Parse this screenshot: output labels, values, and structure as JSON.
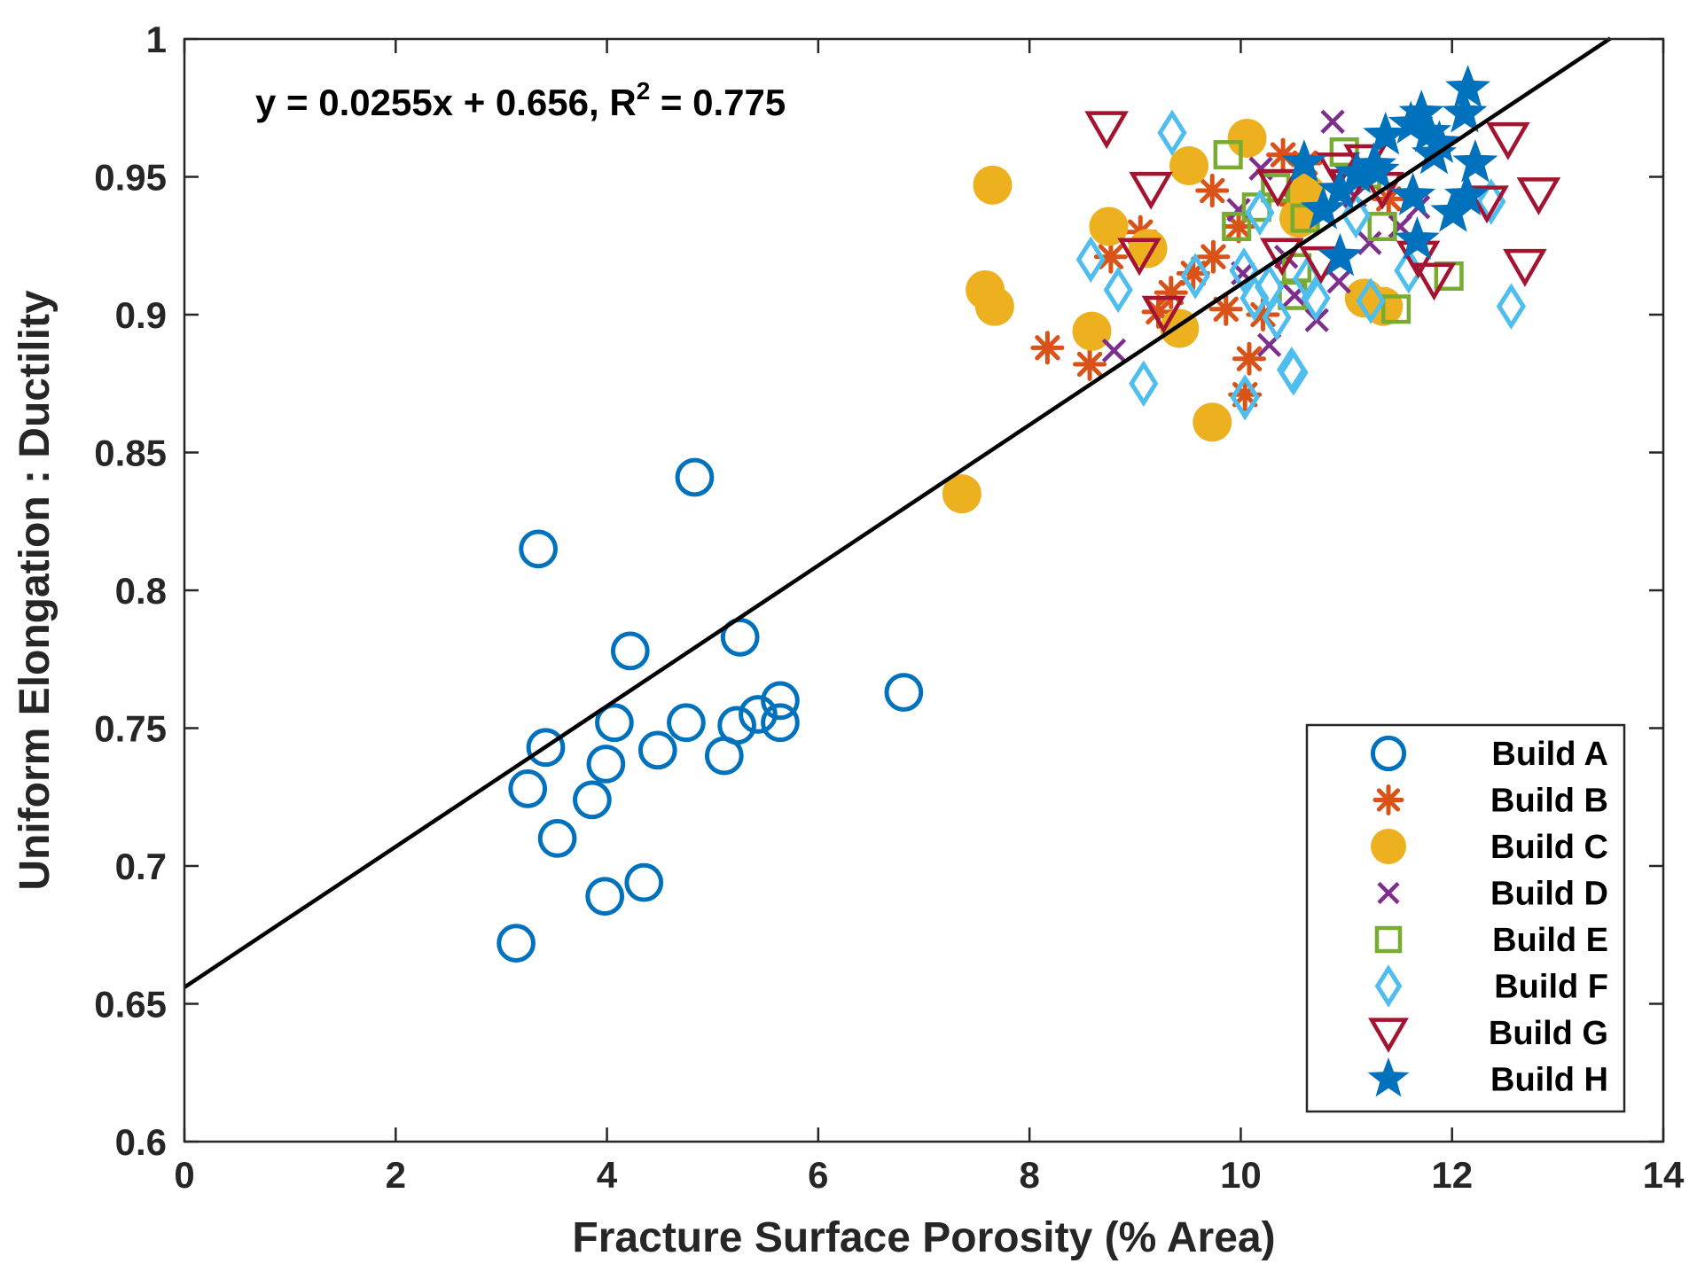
{
  "chart_data": {
    "type": "scatter",
    "title": "",
    "xlabel": "Fracture Surface Porosity (% Area)",
    "ylabel": "Uniform Elongation : Ductility",
    "xlim": [
      0,
      14
    ],
    "ylim": [
      0.6,
      1.0
    ],
    "xticks": [
      0,
      2,
      4,
      6,
      8,
      10,
      12,
      14
    ],
    "xtick_labels": [
      "0",
      "2",
      "4",
      "6",
      "8",
      "10",
      "12",
      "14"
    ],
    "yticks": [
      0.6,
      0.65,
      0.7,
      0.75,
      0.8,
      0.85,
      0.9,
      0.95,
      1.0
    ],
    "ytick_labels": [
      "0.6",
      "0.65",
      "0.7",
      "0.75",
      "0.8",
      "0.85",
      "0.9",
      "0.95",
      "1"
    ],
    "grid": false,
    "legend_position": "bottom-right",
    "fit": {
      "slope": 0.0255,
      "intercept": 0.656,
      "x_range": [
        0,
        13.5
      ],
      "label_prefix": "y = 0.0255x + 0.656, R",
      "label_sup": "2",
      "label_suffix": " = 0.775"
    },
    "series": [
      {
        "name": "Build A",
        "marker": "circle-open",
        "color": "#0072BD",
        "points": [
          [
            4.83,
            0.841
          ],
          [
            3.35,
            0.815
          ],
          [
            4.22,
            0.778
          ],
          [
            5.26,
            0.783
          ],
          [
            6.81,
            0.763
          ],
          [
            5.64,
            0.76
          ],
          [
            5.43,
            0.755
          ],
          [
            5.23,
            0.751
          ],
          [
            5.64,
            0.752
          ],
          [
            4.75,
            0.752
          ],
          [
            4.07,
            0.752
          ],
          [
            3.42,
            0.743
          ],
          [
            4.48,
            0.742
          ],
          [
            3.99,
            0.737
          ],
          [
            5.11,
            0.74
          ],
          [
            3.25,
            0.728
          ],
          [
            3.86,
            0.724
          ],
          [
            3.53,
            0.71
          ],
          [
            4.35,
            0.694
          ],
          [
            3.98,
            0.689
          ],
          [
            3.14,
            0.672
          ]
        ]
      },
      {
        "name": "Build B",
        "marker": "asterisk",
        "color": "#D95319",
        "points": [
          [
            8.17,
            0.888
          ],
          [
            8.57,
            0.882
          ],
          [
            8.77,
            0.921
          ],
          [
            9.05,
            0.93
          ],
          [
            9.34,
            0.908
          ],
          [
            9.55,
            0.915
          ],
          [
            9.73,
            0.945
          ],
          [
            9.74,
            0.921
          ],
          [
            9.86,
            0.902
          ],
          [
            9.98,
            0.932
          ],
          [
            10.08,
            0.884
          ],
          [
            10.21,
            0.9
          ],
          [
            10.04,
            0.871
          ],
          [
            10.4,
            0.958
          ],
          [
            10.52,
            0.94
          ],
          [
            10.61,
            0.955
          ],
          [
            11.4,
            0.942
          ],
          [
            9.22,
            0.901
          ]
        ]
      },
      {
        "name": "Build C",
        "marker": "circle-filled",
        "color": "#EDB120",
        "points": [
          [
            7.65,
            0.947
          ],
          [
            7.58,
            0.909
          ],
          [
            7.67,
            0.903
          ],
          [
            8.75,
            0.932
          ],
          [
            9.12,
            0.924
          ],
          [
            8.59,
            0.894
          ],
          [
            9.42,
            0.895
          ],
          [
            9.51,
            0.954
          ],
          [
            10.06,
            0.964
          ],
          [
            9.73,
            0.861
          ],
          [
            7.36,
            0.835
          ],
          [
            10.62,
            0.944
          ],
          [
            11.17,
            0.906
          ],
          [
            11.35,
            0.903
          ],
          [
            10.55,
            0.935
          ]
        ]
      },
      {
        "name": "Build D",
        "marker": "x",
        "color": "#7E2F8E",
        "points": [
          [
            8.8,
            0.887
          ],
          [
            9.98,
            0.938
          ],
          [
            10.19,
            0.953
          ],
          [
            10.27,
            0.889
          ],
          [
            10.43,
            0.921
          ],
          [
            10.72,
            0.898
          ],
          [
            10.93,
            0.912
          ],
          [
            10.87,
            0.97
          ],
          [
            11.08,
            0.943
          ],
          [
            11.22,
            0.926
          ],
          [
            11.51,
            0.932
          ],
          [
            11.68,
            0.939
          ],
          [
            10.02,
            0.915
          ],
          [
            10.51,
            0.907
          ]
        ]
      },
      {
        "name": "Build E",
        "marker": "square-open",
        "color": "#77AC30",
        "points": [
          [
            9.88,
            0.958
          ],
          [
            9.96,
            0.932
          ],
          [
            10.15,
            0.939
          ],
          [
            10.33,
            0.946
          ],
          [
            10.53,
            0.917
          ],
          [
            10.49,
            0.907
          ],
          [
            10.98,
            0.959
          ],
          [
            11.19,
            0.951
          ],
          [
            11.34,
            0.932
          ],
          [
            11.47,
            0.902
          ],
          [
            11.97,
            0.914
          ],
          [
            10.61,
            0.935
          ]
        ]
      },
      {
        "name": "Build F",
        "marker": "diamond-open",
        "color": "#4DBEEE",
        "points": [
          [
            9.35,
            0.966
          ],
          [
            8.58,
            0.92
          ],
          [
            8.84,
            0.909
          ],
          [
            9.08,
            0.875
          ],
          [
            9.57,
            0.914
          ],
          [
            10.04,
            0.87
          ],
          [
            10.03,
            0.916
          ],
          [
            10.13,
            0.906
          ],
          [
            10.27,
            0.91
          ],
          [
            10.34,
            0.899
          ],
          [
            10.48,
            0.88
          ],
          [
            10.5,
            0.879
          ],
          [
            10.63,
            0.913
          ],
          [
            10.71,
            0.906
          ],
          [
            11.23,
            0.905
          ],
          [
            11.59,
            0.916
          ],
          [
            12.56,
            0.903
          ],
          [
            12.37,
            0.941
          ],
          [
            10.18,
            0.937
          ],
          [
            11.09,
            0.936
          ]
        ]
      },
      {
        "name": "Build G",
        "marker": "triangle-down-open",
        "color": "#A2142F",
        "points": [
          [
            8.73,
            0.968
          ],
          [
            9.15,
            0.946
          ],
          [
            9.04,
            0.922
          ],
          [
            9.27,
            0.901
          ],
          [
            10.35,
            0.947
          ],
          [
            10.39,
            0.922
          ],
          [
            10.76,
            0.919
          ],
          [
            10.92,
            0.953
          ],
          [
            11.18,
            0.956
          ],
          [
            11.34,
            0.946
          ],
          [
            11.68,
            0.921
          ],
          [
            11.83,
            0.913
          ],
          [
            12.53,
            0.964
          ],
          [
            12.82,
            0.944
          ],
          [
            12.69,
            0.918
          ],
          [
            12.33,
            0.941
          ],
          [
            11.04,
            0.947
          ]
        ]
      },
      {
        "name": "Build H",
        "marker": "star-filled",
        "color": "#0072BD",
        "points": [
          [
            10.6,
            0.955
          ],
          [
            10.78,
            0.938
          ],
          [
            10.94,
            0.945
          ],
          [
            11.1,
            0.951
          ],
          [
            11.29,
            0.952
          ],
          [
            11.37,
            0.965
          ],
          [
            11.61,
            0.969
          ],
          [
            11.71,
            0.973
          ],
          [
            11.78,
            0.966
          ],
          [
            11.88,
            0.962
          ],
          [
            12.01,
            0.937
          ],
          [
            12.15,
            0.982
          ],
          [
            12.12,
            0.973
          ],
          [
            12.22,
            0.955
          ],
          [
            12.14,
            0.943
          ],
          [
            11.67,
            0.927
          ],
          [
            11.63,
            0.943
          ],
          [
            10.94,
            0.921
          ],
          [
            11.26,
            0.954
          ],
          [
            11.83,
            0.958
          ]
        ]
      }
    ]
  }
}
